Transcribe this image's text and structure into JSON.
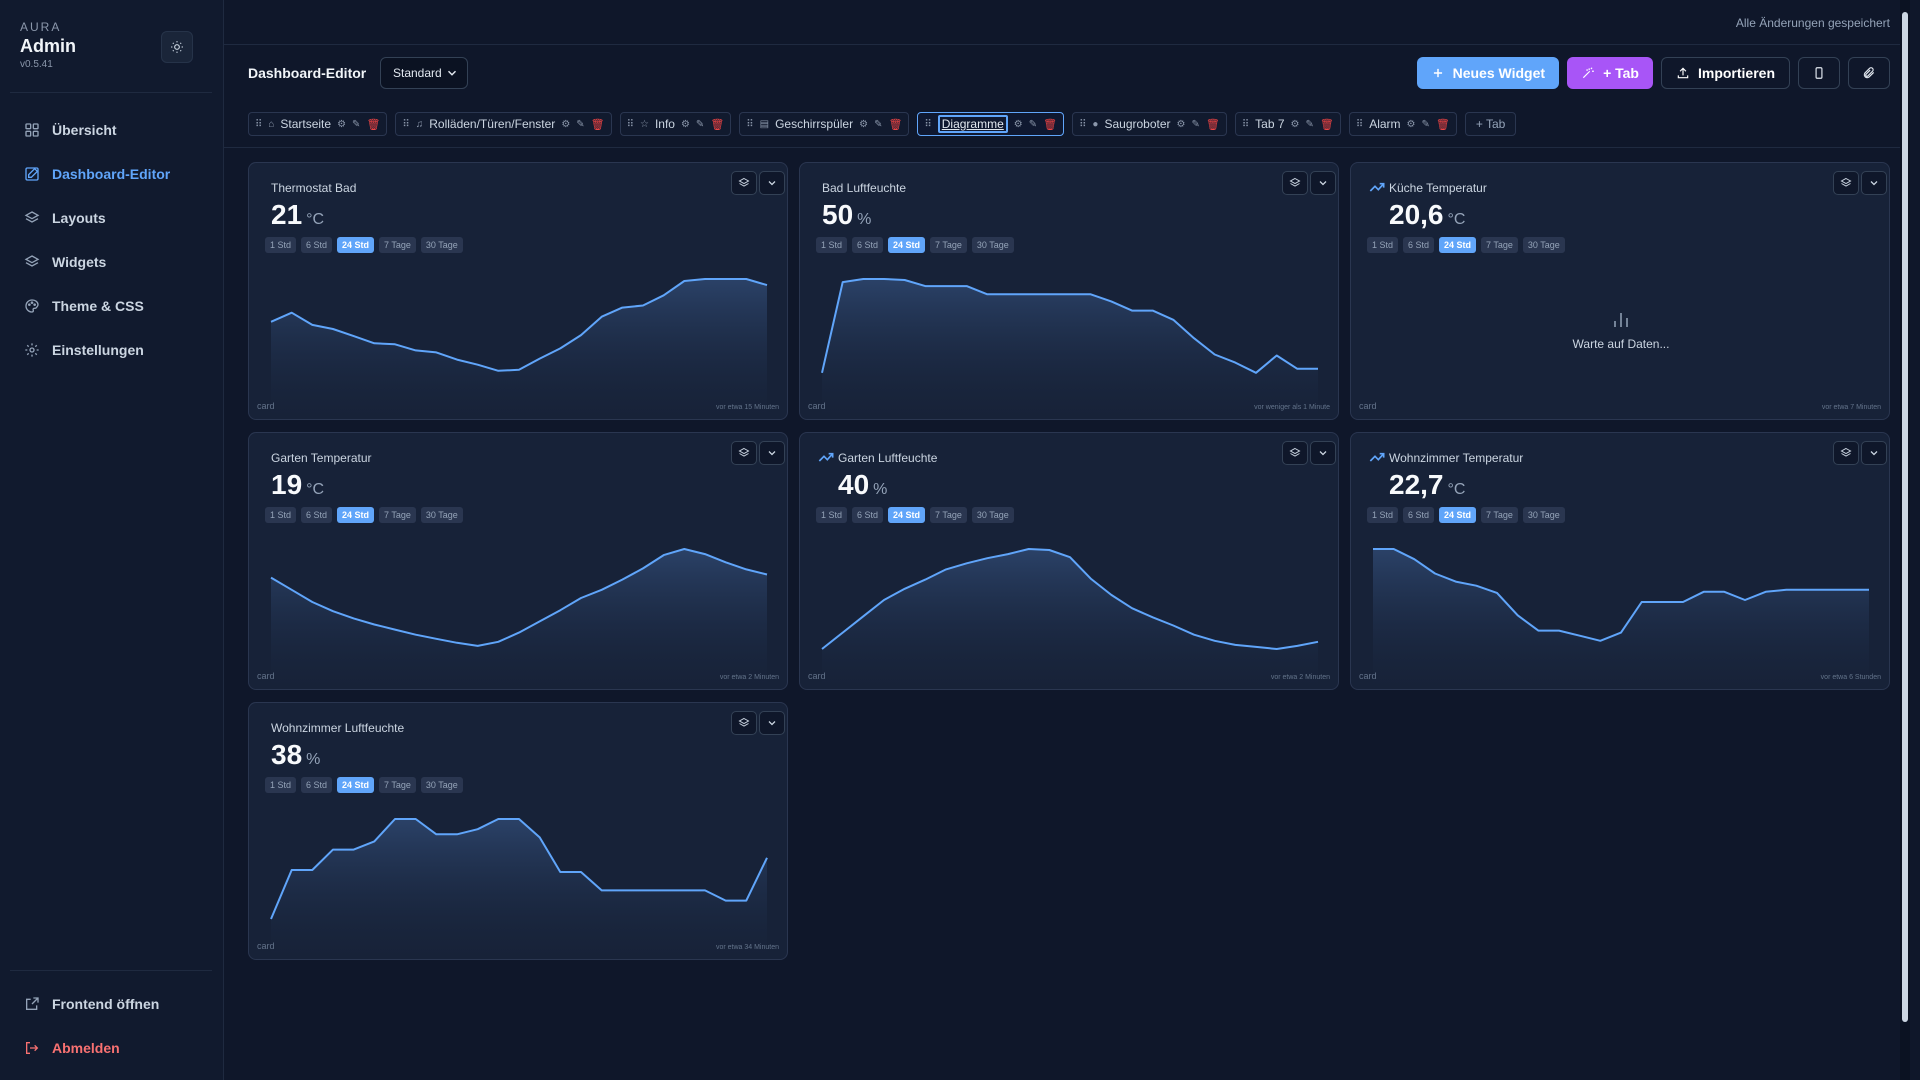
{
  "sidebar": {
    "brand_small": "AURA",
    "brand_title": "Admin",
    "version": "v0.5.41",
    "items": [
      {
        "label": "Übersicht",
        "icon": "grid-icon"
      },
      {
        "label": "Dashboard-Editor",
        "icon": "edit-icon",
        "active": true
      },
      {
        "label": "Layouts",
        "icon": "layers-icon"
      },
      {
        "label": "Widgets",
        "icon": "layers-icon"
      },
      {
        "label": "Theme & CSS",
        "icon": "palette-icon"
      },
      {
        "label": "Einstellungen",
        "icon": "gear-icon"
      }
    ],
    "bottom": [
      {
        "label": "Frontend öffnen",
        "icon": "external-link-icon"
      },
      {
        "label": "Abmelden",
        "icon": "logout-icon"
      }
    ]
  },
  "header": {
    "saved_status": "Alle Änderungen gespeichert",
    "title": "Dashboard-Editor",
    "layout_select": "Standard",
    "new_widget": "Neues Widget",
    "add_tab": "+ Tab",
    "import": "Importieren"
  },
  "tabs": [
    {
      "label": "Startseite",
      "icon": "⌂"
    },
    {
      "label": "Rolläden/Türen/Fenster",
      "icon": "♫"
    },
    {
      "label": "Info",
      "icon": "☆"
    },
    {
      "label": "Geschirrspüler",
      "icon": "▤"
    },
    {
      "label": "Diagramme",
      "icon": "",
      "active": true
    },
    {
      "label": "Saugroboter",
      "icon": "●"
    },
    {
      "label": "Tab 7",
      "icon": ""
    },
    {
      "label": "Alarm",
      "icon": ""
    }
  ],
  "add_tab_label": "+ Tab",
  "ranges": [
    "1 Std",
    "6 Std",
    "24 Std",
    "7 Tage",
    "30 Tage"
  ],
  "active_range": "24 Std",
  "cards": [
    {
      "title": "Thermostat Bad",
      "value": "21",
      "unit": "°C",
      "footer_left": "card",
      "footer_right": "vor etwa 15 Minuten",
      "trend_icon": false,
      "points": [
        0.42,
        0.33,
        0.45,
        0.49,
        0.56,
        0.63,
        0.64,
        0.7,
        0.72,
        0.79,
        0.84,
        0.9,
        0.89,
        0.78,
        0.68,
        0.55,
        0.37,
        0.28,
        0.26,
        0.16,
        0.02,
        0.0,
        0.0,
        -0.05,
        0.06
      ]
    },
    {
      "title": "Bad Luftfeuchte",
      "value": "50",
      "unit": "%",
      "footer_left": "card",
      "footer_right": "vor weniger als 1 Minute",
      "trend_icon": false,
      "points": [
        0.92,
        0.03,
        0.0,
        0.0,
        0.01,
        0.07,
        0.07,
        0.07,
        0.15,
        0.15,
        0.15,
        0.15,
        0.15,
        0.15,
        0.22,
        0.31,
        0.31,
        0.4,
        0.58,
        0.74,
        0.82,
        0.92,
        0.75,
        0.88,
        0.88
      ]
    },
    {
      "title": "Küche Temperatur",
      "value": "20,6",
      "unit": "°C",
      "footer_left": "card",
      "footer_right": "vor etwa 7 Minuten",
      "trend_icon": true,
      "waiting": "Warte auf Daten..."
    },
    {
      "title": "Garten Temperatur",
      "value": "19",
      "unit": "°C",
      "footer_left": "card",
      "footer_right": "vor etwa 2 Minuten",
      "trend_icon": false,
      "points": [
        0.28,
        0.4,
        0.52,
        0.61,
        0.68,
        0.74,
        0.79,
        0.84,
        0.88,
        0.92,
        0.95,
        0.91,
        0.82,
        0.71,
        0.6,
        0.48,
        0.4,
        0.3,
        0.19,
        0.06,
        0.0,
        0.05,
        0.13,
        0.2,
        0.25
      ]
    },
    {
      "title": "Garten Luftfeuchte",
      "value": "40",
      "unit": "%",
      "footer_left": "card",
      "footer_right": "vor etwa 2 Minuten",
      "trend_icon": true,
      "points": [
        0.98,
        0.82,
        0.66,
        0.5,
        0.39,
        0.3,
        0.2,
        0.14,
        0.09,
        0.05,
        0.0,
        0.01,
        0.08,
        0.29,
        0.45,
        0.58,
        0.67,
        0.75,
        0.84,
        0.9,
        0.94,
        0.96,
        0.98,
        0.95,
        0.91
      ]
    },
    {
      "title": "Wohnzimmer Temperatur",
      "value": "22,7",
      "unit": "°C",
      "footer_left": "card",
      "footer_right": "vor etwa 6 Stunden",
      "trend_icon": true,
      "points": [
        0.0,
        0.0,
        0.1,
        0.24,
        0.32,
        0.36,
        0.43,
        0.65,
        0.8,
        0.8,
        0.85,
        0.9,
        0.82,
        0.52,
        0.52,
        0.52,
        0.42,
        0.42,
        0.5,
        0.42,
        0.4,
        0.4,
        0.4,
        0.4,
        0.4
      ]
    },
    {
      "title": "Wohnzimmer Luftfeuchte",
      "value": "38",
      "unit": "%",
      "footer_left": "card",
      "footer_right": "vor etwa 34 Minuten",
      "trend_icon": false,
      "points": [
        0.98,
        0.5,
        0.5,
        0.3,
        0.3,
        0.22,
        0.0,
        0.0,
        0.15,
        0.15,
        0.1,
        0.0,
        0.0,
        0.18,
        0.52,
        0.52,
        0.7,
        0.7,
        0.7,
        0.7,
        0.7,
        0.7,
        0.8,
        0.8,
        0.38
      ]
    }
  ]
}
